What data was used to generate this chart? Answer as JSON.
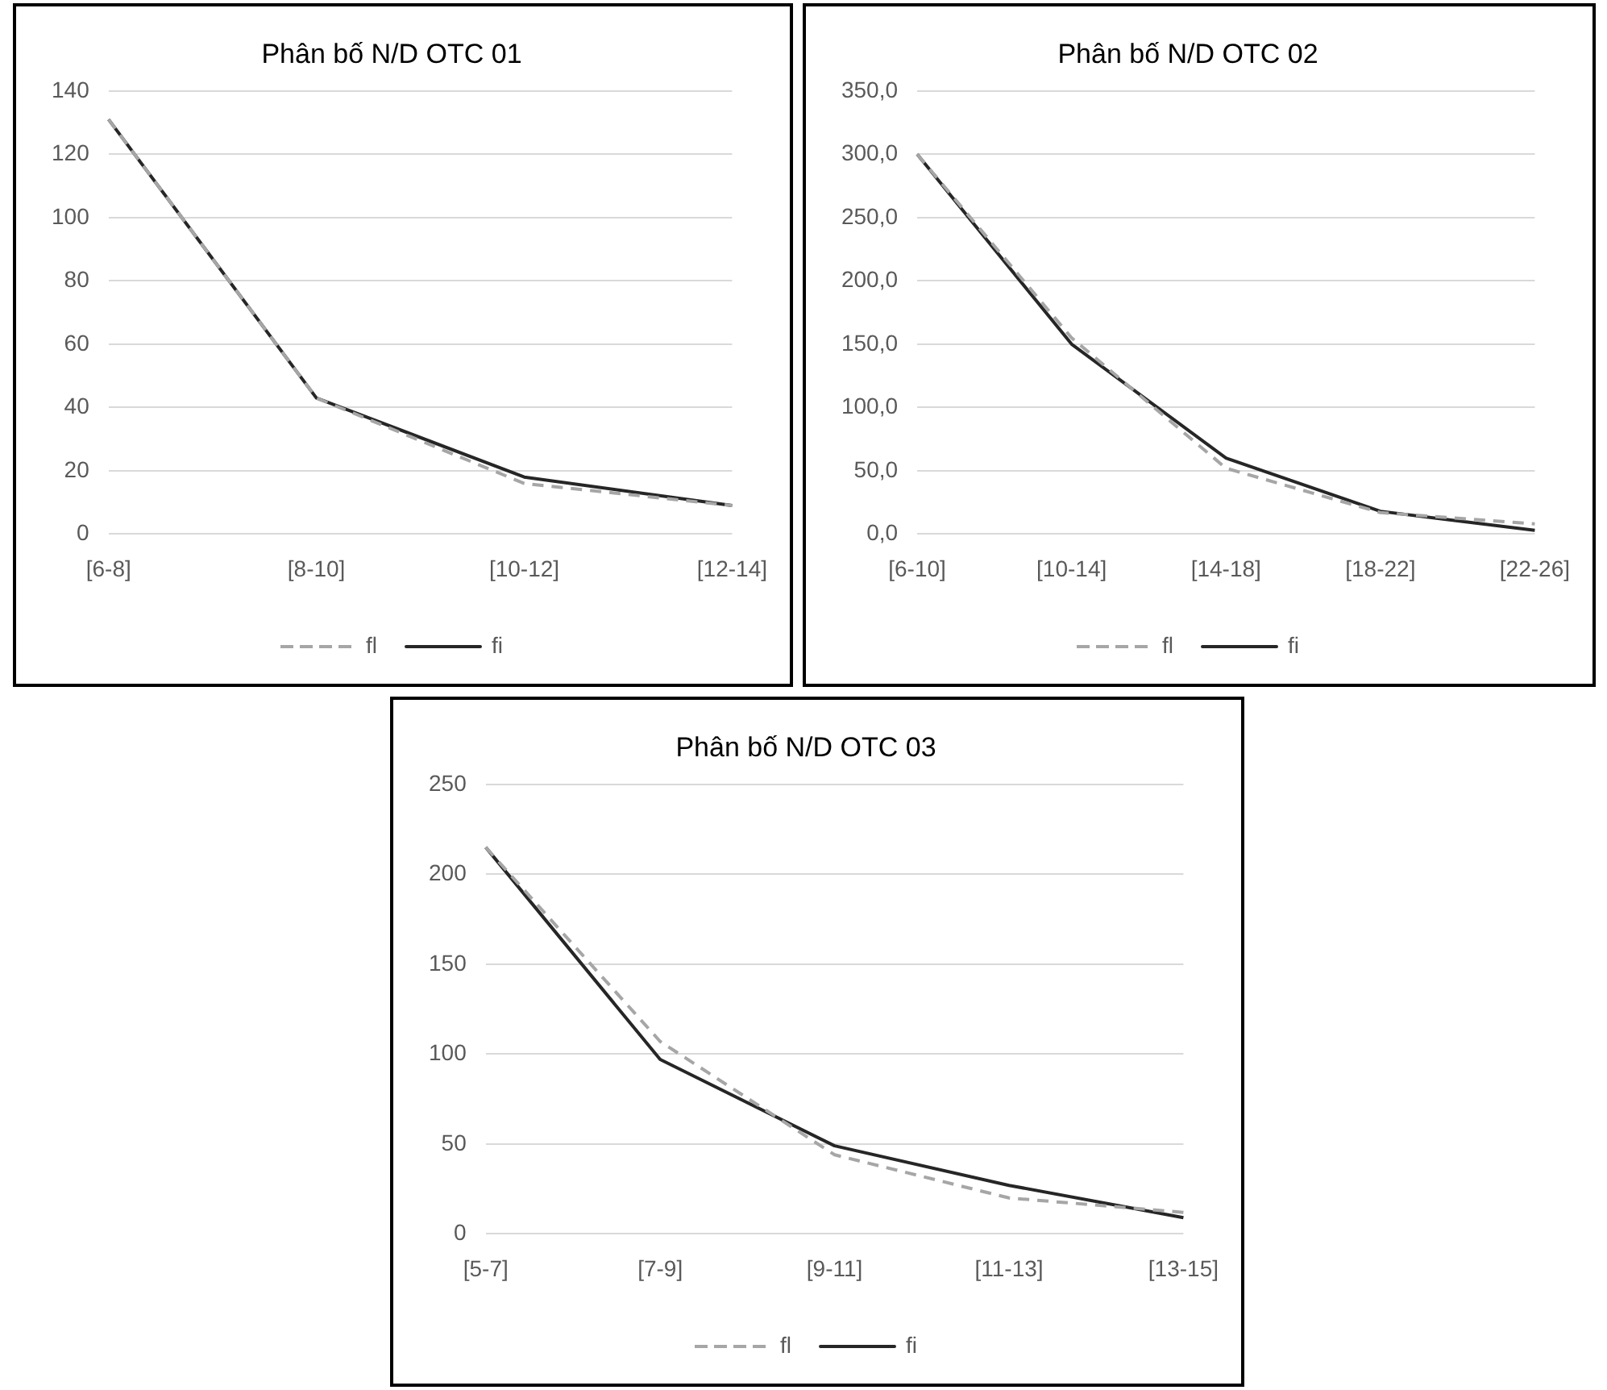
{
  "chart_data": [
    {
      "type": "line",
      "title": "Phân bố N/D OTC 01",
      "categories": [
        "[6-8]",
        "[8-10]",
        "[10-12]",
        "[12-14]"
      ],
      "series": [
        {
          "name": "fl",
          "color": "#a6a6a6",
          "line_style": "dashed",
          "values": [
            131,
            43,
            16,
            9
          ]
        },
        {
          "name": "fi",
          "color": "#262626",
          "line_style": "solid",
          "values": [
            131,
            43,
            18,
            9
          ]
        }
      ],
      "ylim": [
        0,
        140
      ],
      "yticks": [
        0,
        20,
        40,
        60,
        80,
        100,
        120,
        140
      ],
      "grid": "y",
      "legend": "bottom",
      "marker": "none"
    },
    {
      "type": "line",
      "title": "Phân bố N/D OTC 02",
      "categories": [
        "[6-10]",
        "[10-14]",
        "[14-18]",
        "[18-22]",
        "[22-26]"
      ],
      "series": [
        {
          "name": "fl",
          "color": "#a6a6a6",
          "line_style": "dashed",
          "values": [
            300,
            155,
            52,
            17,
            8
          ]
        },
        {
          "name": "fi",
          "color": "#262626",
          "line_style": "solid",
          "values": [
            300,
            150,
            60,
            18,
            3
          ]
        }
      ],
      "ylim": [
        0,
        350
      ],
      "yticks": [
        {
          "value": 0,
          "label": "0,0"
        },
        {
          "value": 50,
          "label": "50,0"
        },
        {
          "value": 100,
          "label": "100,0"
        },
        {
          "value": 150,
          "label": "150,0"
        },
        {
          "value": 200,
          "label": "200,0"
        },
        {
          "value": 250,
          "label": "250,0"
        },
        {
          "value": 300,
          "label": "300,0"
        },
        {
          "value": 350,
          "label": "350,0"
        }
      ],
      "grid": "y",
      "legend": "bottom",
      "marker": "none"
    },
    {
      "type": "line",
      "title": "Phân bố N/D OTC 03",
      "categories": [
        "[5-7]",
        "[7-9]",
        "[9-11]",
        "[11-13]",
        "[13-15]"
      ],
      "series": [
        {
          "name": "fl",
          "color": "#a6a6a6",
          "line_style": "dashed",
          "values": [
            215,
            107,
            44,
            20,
            12
          ]
        },
        {
          "name": "fi",
          "color": "#262626",
          "line_style": "solid",
          "values": [
            215,
            97,
            49,
            27,
            9
          ]
        }
      ],
      "ylim": [
        0,
        250
      ],
      "yticks": [
        0,
        50,
        100,
        150,
        200,
        250
      ],
      "grid": "y",
      "legend": "bottom",
      "marker": "none"
    }
  ]
}
